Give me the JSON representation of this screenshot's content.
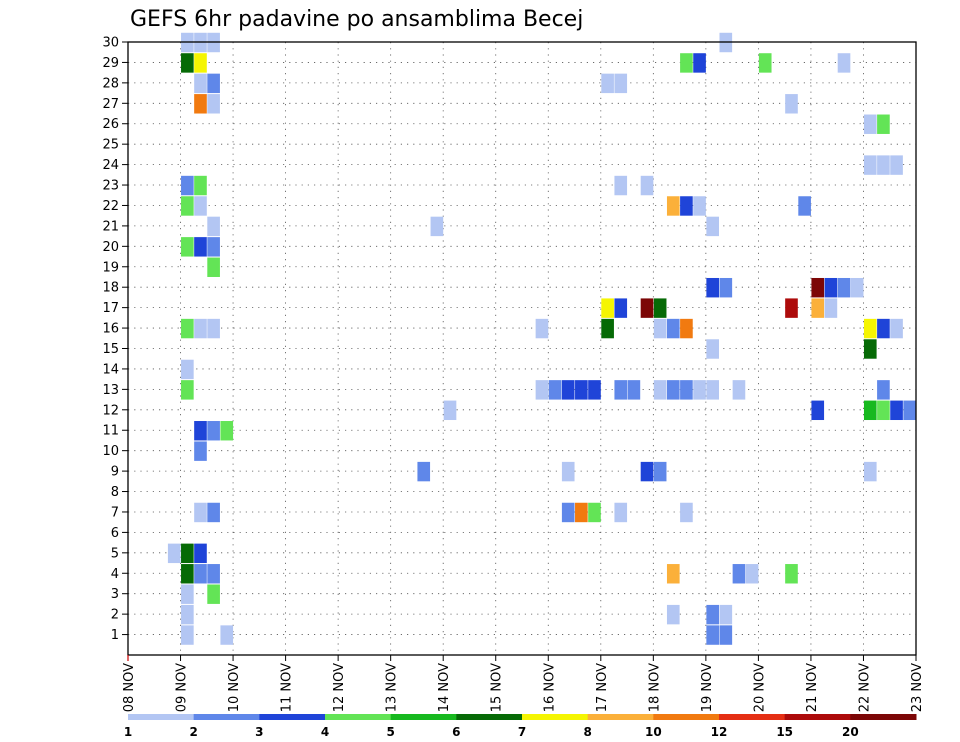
{
  "chart_data": {
    "type": "heatmap",
    "title": "GEFS 6hr padavine po ansamblima Becej",
    "xlabel": "",
    "ylabel": "",
    "x_tick_labels": [
      "08 NOV",
      "09 NOV",
      "10 NOV",
      "11 NOV",
      "12 NOV",
      "13 NOV",
      "14 NOV",
      "15 NOV",
      "16 NOV",
      "17 NOV",
      "18 NOV",
      "19 NOV",
      "20 NOV",
      "21 NOV",
      "22 NOV",
      "23 NOV"
    ],
    "y_tick_labels": [
      "1",
      "2",
      "3",
      "4",
      "5",
      "6",
      "7",
      "8",
      "9",
      "10",
      "11",
      "12",
      "13",
      "14",
      "15",
      "16",
      "17",
      "18",
      "19",
      "20",
      "21",
      "22",
      "23",
      "24",
      "25",
      "26",
      "27",
      "28",
      "29",
      "30"
    ],
    "xlim": [
      0,
      60
    ],
    "ylim": [
      0,
      30
    ],
    "grid": true,
    "color_scale": {
      "labels": [
        "1",
        "2",
        "3",
        "4",
        "5",
        "6",
        "7",
        "8",
        "10",
        "12",
        "15",
        "20"
      ],
      "colors": [
        "#b3c6f3",
        "#5f87e9",
        "#1f44d8",
        "#63e456",
        "#17b91f",
        "#066a06",
        "#f5f502",
        "#fbb03a",
        "#f17a10",
        "#e52f14",
        "#ad0b0b",
        "#7c0606"
      ]
    },
    "cells": [
      {
        "x": 5,
        "y": 30,
        "c": 0
      },
      {
        "x": 6,
        "y": 30,
        "c": 0
      },
      {
        "x": 7,
        "y": 30,
        "c": 0
      },
      {
        "x": 46,
        "y": 30,
        "c": 0
      },
      {
        "x": 5,
        "y": 29,
        "c": 5
      },
      {
        "x": 6,
        "y": 29,
        "c": 6
      },
      {
        "x": 43,
        "y": 29,
        "c": 3
      },
      {
        "x": 44,
        "y": 29,
        "c": 2
      },
      {
        "x": 49,
        "y": 29,
        "c": 3
      },
      {
        "x": 55,
        "y": 29,
        "c": 0
      },
      {
        "x": 6,
        "y": 28,
        "c": 0
      },
      {
        "x": 7,
        "y": 28,
        "c": 1
      },
      {
        "x": 37,
        "y": 28,
        "c": 0
      },
      {
        "x": 38,
        "y": 28,
        "c": 0
      },
      {
        "x": 6,
        "y": 27,
        "c": 8
      },
      {
        "x": 7,
        "y": 27,
        "c": 0
      },
      {
        "x": 51,
        "y": 27,
        "c": 0
      },
      {
        "x": 57,
        "y": 26,
        "c": 0
      },
      {
        "x": 58,
        "y": 26,
        "c": 3
      },
      {
        "x": 57,
        "y": 24,
        "c": 0
      },
      {
        "x": 58,
        "y": 24,
        "c": 0
      },
      {
        "x": 59,
        "y": 24,
        "c": 0
      },
      {
        "x": 5,
        "y": 23,
        "c": 1
      },
      {
        "x": 6,
        "y": 23,
        "c": 3
      },
      {
        "x": 38,
        "y": 23,
        "c": 0
      },
      {
        "x": 40,
        "y": 23,
        "c": 0
      },
      {
        "x": 5,
        "y": 22,
        "c": 3
      },
      {
        "x": 6,
        "y": 22,
        "c": 0
      },
      {
        "x": 42,
        "y": 22,
        "c": 7
      },
      {
        "x": 43,
        "y": 22,
        "c": 2
      },
      {
        "x": 44,
        "y": 22,
        "c": 0
      },
      {
        "x": 52,
        "y": 22,
        "c": 1
      },
      {
        "x": 7,
        "y": 21,
        "c": 0
      },
      {
        "x": 24,
        "y": 21,
        "c": 0
      },
      {
        "x": 45,
        "y": 21,
        "c": 0
      },
      {
        "x": 5,
        "y": 20,
        "c": 3
      },
      {
        "x": 6,
        "y": 20,
        "c": 2
      },
      {
        "x": 7,
        "y": 20,
        "c": 1
      },
      {
        "x": 7,
        "y": 19,
        "c": 3
      },
      {
        "x": 45,
        "y": 18,
        "c": 2
      },
      {
        "x": 46,
        "y": 18,
        "c": 1
      },
      {
        "x": 53,
        "y": 18,
        "c": 11
      },
      {
        "x": 54,
        "y": 18,
        "c": 2
      },
      {
        "x": 55,
        "y": 18,
        "c": 1
      },
      {
        "x": 56,
        "y": 18,
        "c": 0
      },
      {
        "x": 37,
        "y": 17,
        "c": 6
      },
      {
        "x": 38,
        "y": 17,
        "c": 2
      },
      {
        "x": 40,
        "y": 17,
        "c": 11
      },
      {
        "x": 41,
        "y": 17,
        "c": 5
      },
      {
        "x": 51,
        "y": 17,
        "c": 10
      },
      {
        "x": 53,
        "y": 17,
        "c": 7
      },
      {
        "x": 54,
        "y": 17,
        "c": 0
      },
      {
        "x": 5,
        "y": 16,
        "c": 3
      },
      {
        "x": 6,
        "y": 16,
        "c": 0
      },
      {
        "x": 7,
        "y": 16,
        "c": 0
      },
      {
        "x": 32,
        "y": 16,
        "c": 0
      },
      {
        "x": 37,
        "y": 16,
        "c": 5
      },
      {
        "x": 41,
        "y": 16,
        "c": 0
      },
      {
        "x": 42,
        "y": 16,
        "c": 1
      },
      {
        "x": 43,
        "y": 16,
        "c": 8
      },
      {
        "x": 57,
        "y": 16,
        "c": 6
      },
      {
        "x": 58,
        "y": 16,
        "c": 2
      },
      {
        "x": 59,
        "y": 16,
        "c": 0
      },
      {
        "x": 45,
        "y": 15,
        "c": 0
      },
      {
        "x": 57,
        "y": 15,
        "c": 5
      },
      {
        "x": 5,
        "y": 14,
        "c": 0
      },
      {
        "x": 5,
        "y": 13,
        "c": 3
      },
      {
        "x": 32,
        "y": 13,
        "c": 0
      },
      {
        "x": 33,
        "y": 13,
        "c": 1
      },
      {
        "x": 34,
        "y": 13,
        "c": 2
      },
      {
        "x": 35,
        "y": 13,
        "c": 2
      },
      {
        "x": 36,
        "y": 13,
        "c": 2
      },
      {
        "x": 38,
        "y": 13,
        "c": 1
      },
      {
        "x": 39,
        "y": 13,
        "c": 1
      },
      {
        "x": 41,
        "y": 13,
        "c": 0
      },
      {
        "x": 42,
        "y": 13,
        "c": 1
      },
      {
        "x": 43,
        "y": 13,
        "c": 1
      },
      {
        "x": 44,
        "y": 13,
        "c": 0
      },
      {
        "x": 45,
        "y": 13,
        "c": 0
      },
      {
        "x": 47,
        "y": 13,
        "c": 0
      },
      {
        "x": 58,
        "y": 13,
        "c": 1
      },
      {
        "x": 25,
        "y": 12,
        "c": 0
      },
      {
        "x": 53,
        "y": 12,
        "c": 2
      },
      {
        "x": 57,
        "y": 12,
        "c": 4
      },
      {
        "x": 58,
        "y": 12,
        "c": 3
      },
      {
        "x": 59,
        "y": 12,
        "c": 2
      },
      {
        "x": 60,
        "y": 12,
        "c": 1
      },
      {
        "x": 6,
        "y": 11,
        "c": 2
      },
      {
        "x": 7,
        "y": 11,
        "c": 1
      },
      {
        "x": 8,
        "y": 11,
        "c": 3
      },
      {
        "x": 6,
        "y": 10,
        "c": 1
      },
      {
        "x": 23,
        "y": 9,
        "c": 1
      },
      {
        "x": 34,
        "y": 9,
        "c": 0
      },
      {
        "x": 40,
        "y": 9,
        "c": 2
      },
      {
        "x": 41,
        "y": 9,
        "c": 1
      },
      {
        "x": 57,
        "y": 9,
        "c": 0
      },
      {
        "x": 6,
        "y": 7,
        "c": 0
      },
      {
        "x": 7,
        "y": 7,
        "c": 1
      },
      {
        "x": 34,
        "y": 7,
        "c": 1
      },
      {
        "x": 35,
        "y": 7,
        "c": 8
      },
      {
        "x": 36,
        "y": 7,
        "c": 3
      },
      {
        "x": 38,
        "y": 7,
        "c": 0
      },
      {
        "x": 43,
        "y": 7,
        "c": 0
      },
      {
        "x": 4,
        "y": 5,
        "c": 0
      },
      {
        "x": 5,
        "y": 5,
        "c": 5
      },
      {
        "x": 6,
        "y": 5,
        "c": 2
      },
      {
        "x": 5,
        "y": 4,
        "c": 5
      },
      {
        "x": 6,
        "y": 4,
        "c": 1
      },
      {
        "x": 7,
        "y": 4,
        "c": 1
      },
      {
        "x": 42,
        "y": 4,
        "c": 7
      },
      {
        "x": 47,
        "y": 4,
        "c": 1
      },
      {
        "x": 48,
        "y": 4,
        "c": 0
      },
      {
        "x": 51,
        "y": 4,
        "c": 3
      },
      {
        "x": 5,
        "y": 3,
        "c": 0
      },
      {
        "x": 7,
        "y": 3,
        "c": 3
      },
      {
        "x": 5,
        "y": 2,
        "c": 0
      },
      {
        "x": 42,
        "y": 2,
        "c": 0
      },
      {
        "x": 45,
        "y": 2,
        "c": 1
      },
      {
        "x": 46,
        "y": 2,
        "c": 0
      },
      {
        "x": 5,
        "y": 1,
        "c": 0
      },
      {
        "x": 8,
        "y": 1,
        "c": 0
      },
      {
        "x": 45,
        "y": 1,
        "c": 1
      },
      {
        "x": 46,
        "y": 1,
        "c": 1
      }
    ]
  }
}
